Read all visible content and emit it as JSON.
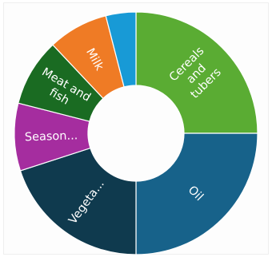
{
  "chart_data": {
    "type": "pie",
    "variant": "donut",
    "title": "",
    "legend": "none",
    "slices": [
      {
        "label": "Cereals and tubers",
        "value": 25,
        "color": "#5aac33",
        "label_lines": [
          "Cereals",
          "and",
          "tubers"
        ]
      },
      {
        "label": "Oil",
        "value": 25,
        "color": "#17628a",
        "label_lines": [
          "Oil"
        ]
      },
      {
        "label": "Vegeta...",
        "value": 20,
        "color": "#0f3a4e",
        "label_lines": [
          "Vegeta..."
        ]
      },
      {
        "label": "Season...",
        "value": 9,
        "color": "#a52d9f",
        "label_lines": [
          "Season..."
        ]
      },
      {
        "label": "Meat and fish",
        "value": 9,
        "color": "#1a6b22",
        "label_lines": [
          "Meat and",
          "fish"
        ]
      },
      {
        "label": "Milk",
        "value": 8,
        "color": "#ef7b25",
        "label_lines": [
          "Milk"
        ]
      },
      {
        "label": "",
        "value": 4,
        "color": "#189ad6",
        "label_lines": []
      }
    ]
  }
}
